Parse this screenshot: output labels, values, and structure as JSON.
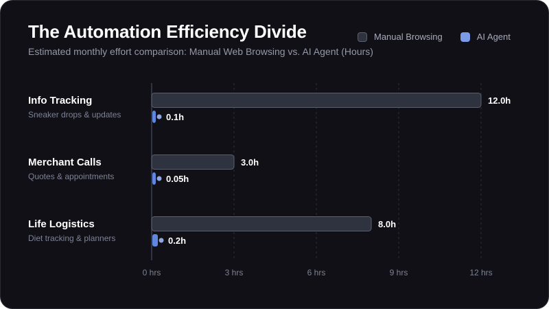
{
  "colors": {
    "background": "#111016",
    "manual_fill": "#2f333f",
    "manual_stroke": "#5b6070",
    "ai_fill": "#5f87e0",
    "ai_dot": "#8fa6de",
    "grid": "#2c2f3a",
    "axis": "#3c4050"
  },
  "chart_data": {
    "type": "bar",
    "orientation": "horizontal",
    "title": "The Automation Efficiency Divide",
    "subtitle": "Estimated monthly effort comparison: Manual Web Browsing vs. AI Agent (Hours)",
    "legend_position": "top-right",
    "grid": true,
    "xlim": [
      0,
      12
    ],
    "ticks": [
      0,
      3,
      6,
      9,
      12
    ],
    "tick_labels": [
      "0 hrs",
      "3 hrs",
      "6 hrs",
      "9 hrs",
      "12 hrs"
    ],
    "categories": [
      {
        "name": "Info Tracking",
        "description": "Sneaker drops & updates"
      },
      {
        "name": "Merchant Calls",
        "description": "Quotes & appointments"
      },
      {
        "name": "Life Logistics",
        "description": "Diet tracking & planners"
      }
    ],
    "series": [
      {
        "name": "Manual Browsing",
        "values": [
          12.0,
          3.0,
          8.0
        ],
        "value_labels": [
          "12.0h",
          "3.0h",
          "8.0h"
        ]
      },
      {
        "name": "AI Agent",
        "values": [
          0.1,
          0.05,
          0.2
        ],
        "value_labels": [
          "0.1h",
          "0.05h",
          "0.2h"
        ]
      }
    ]
  }
}
